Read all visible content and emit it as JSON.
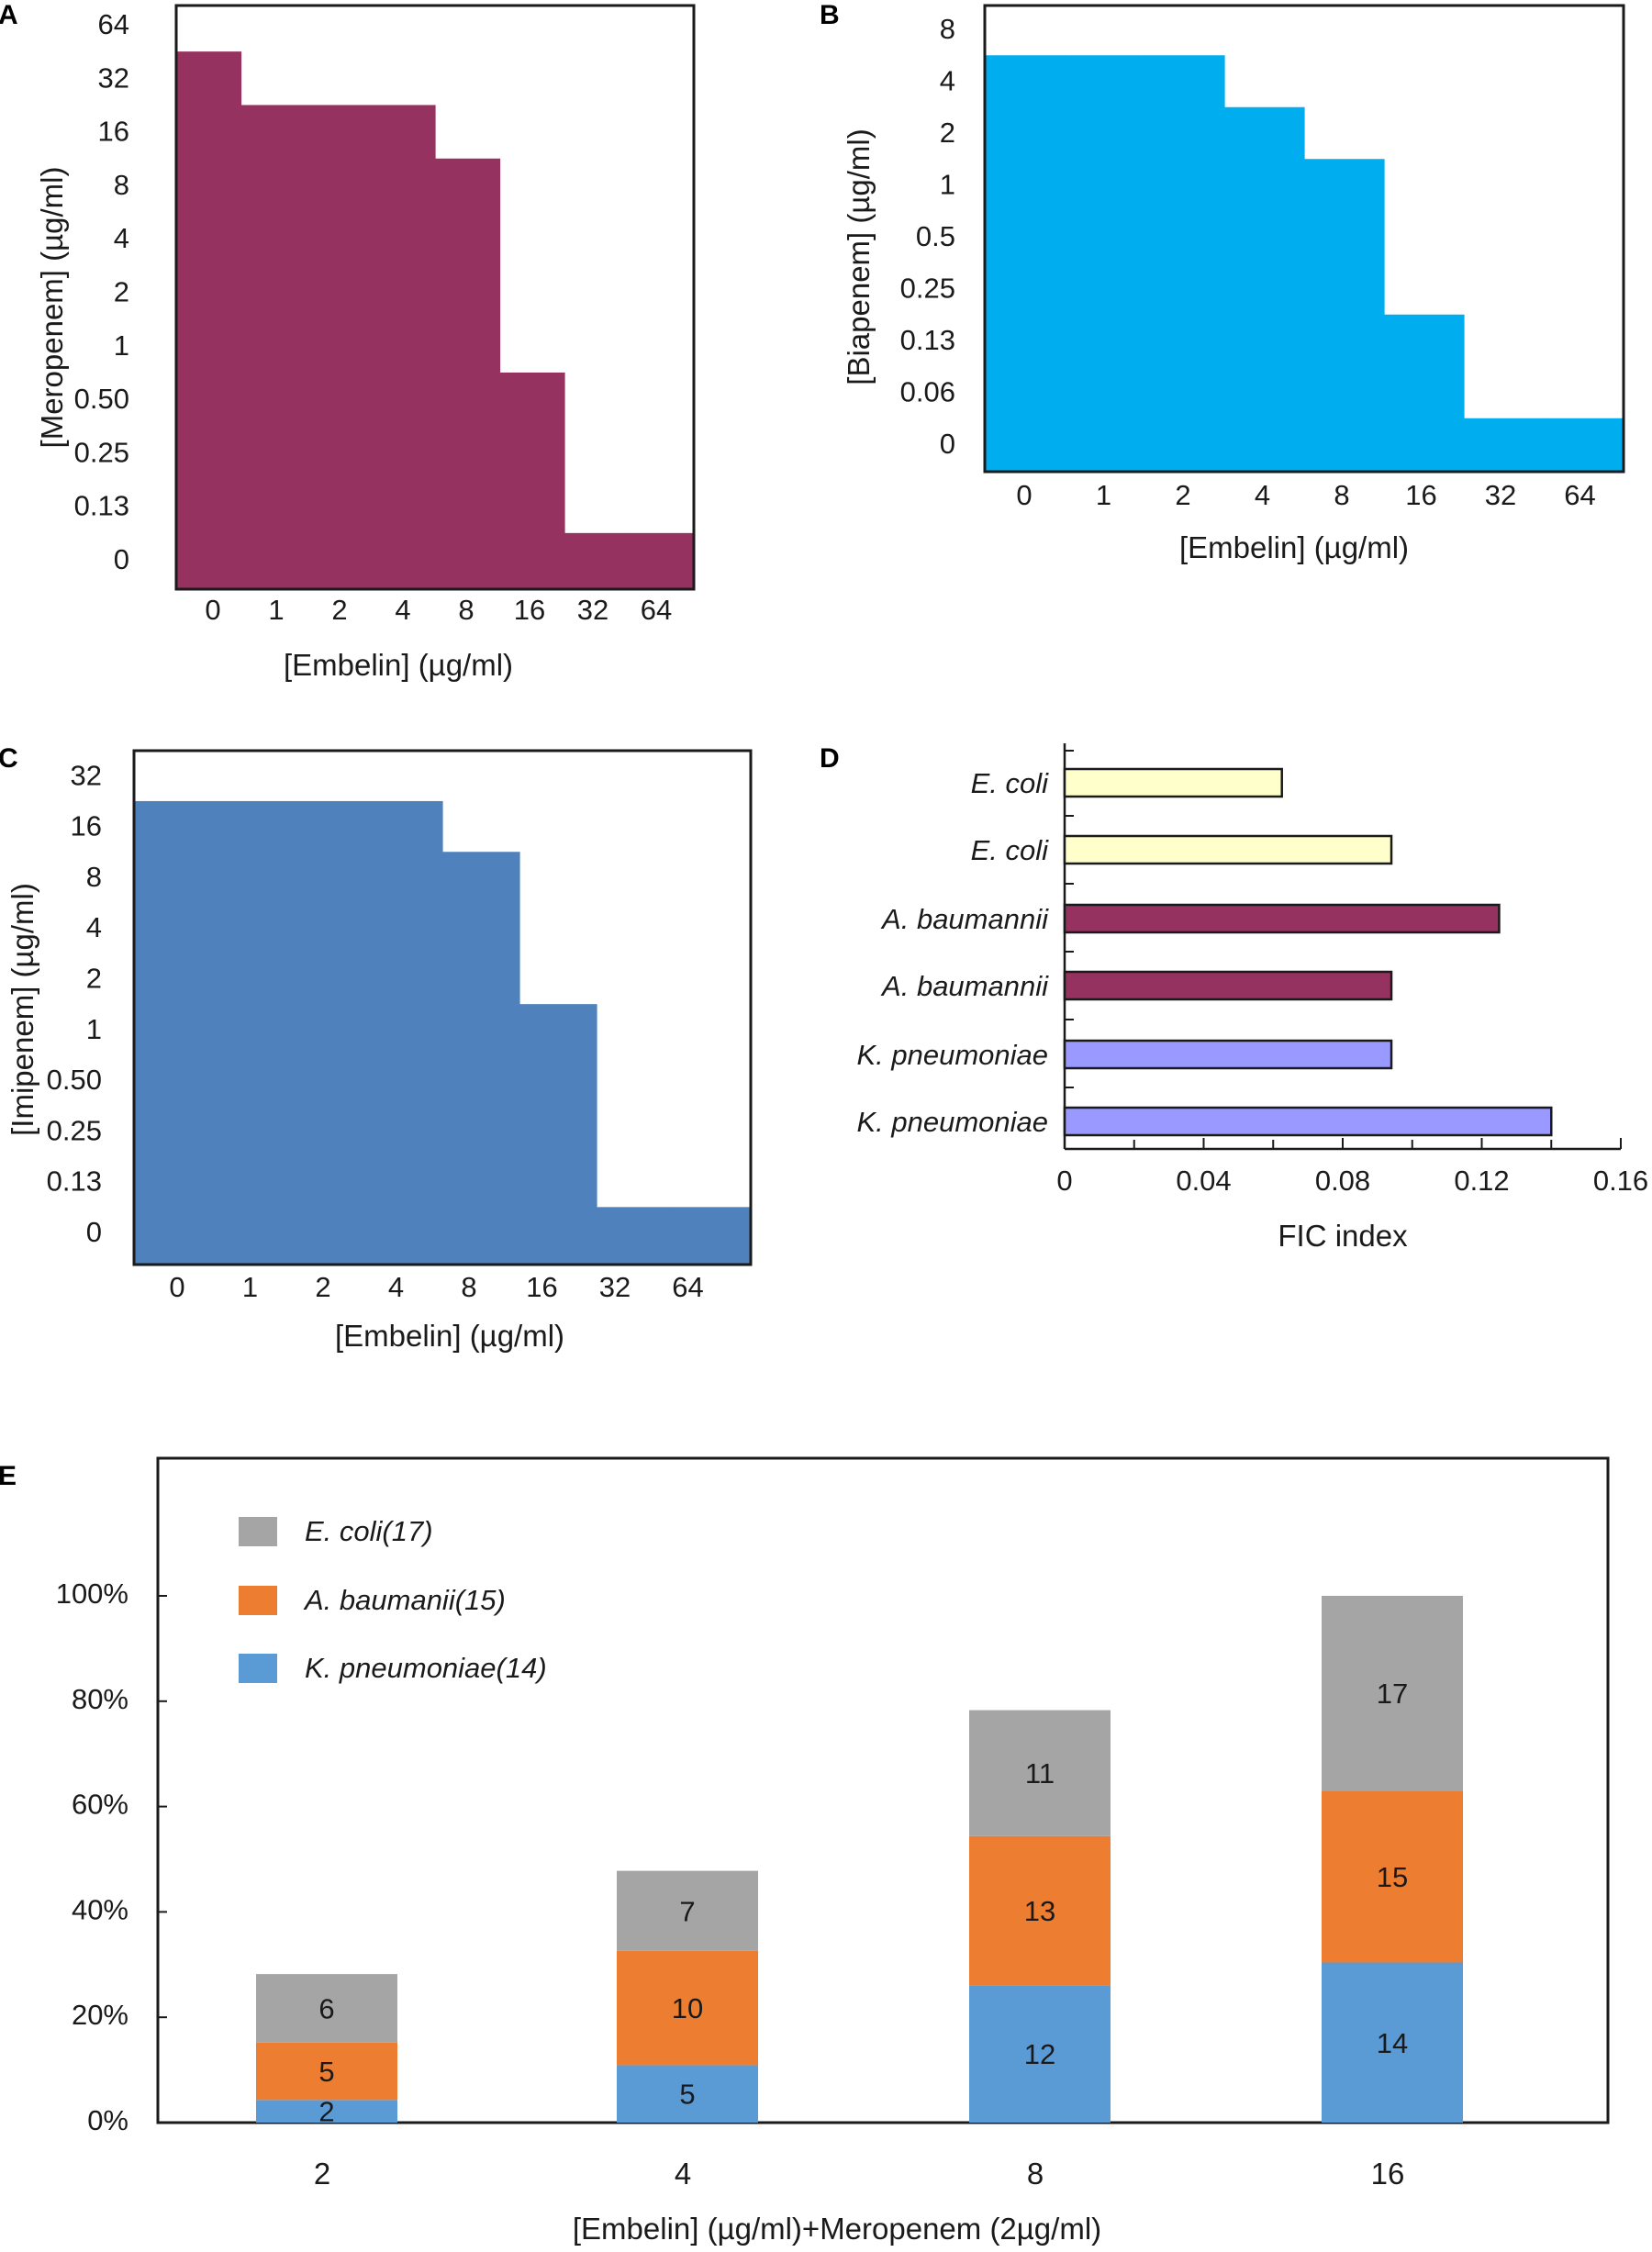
{
  "chart_data": [
    {
      "panel": "A",
      "type": "area",
      "style": "step",
      "color": "#96325f",
      "categories": [
        "0",
        "1",
        "2",
        "4",
        "8",
        "16",
        "32",
        "64"
      ],
      "y_ticks": [
        "0",
        "0.13",
        "0.25",
        "0.50",
        "1",
        "2",
        "4",
        "8",
        "16",
        "32",
        "64"
      ],
      "values": [
        32,
        16,
        16,
        16,
        8,
        0.5,
        0,
        0
      ],
      "xlabel": "[Embelin] (µg/ml)",
      "ylabel": "[Meropenem] (µg/ml)"
    },
    {
      "panel": "B",
      "type": "area",
      "style": "step",
      "color": "#00aeef",
      "categories": [
        "0",
        "1",
        "2",
        "4",
        "8",
        "16",
        "32",
        "64"
      ],
      "y_ticks": [
        "0",
        "0.06",
        "0.13",
        "0.25",
        "0.5",
        "1",
        "2",
        "4",
        "8"
      ],
      "values": [
        4,
        4,
        4,
        2,
        1,
        0.13,
        0,
        0
      ],
      "xlabel": "[Embelin] (µg/ml)",
      "ylabel": "[Biapenem] (µg/ml)"
    },
    {
      "panel": "C",
      "type": "area",
      "style": "step",
      "color": "#4f81bd",
      "categories": [
        "0",
        "1",
        "2",
        "4",
        "8",
        "16",
        "32",
        "64"
      ],
      "y_ticks": [
        "0",
        "0.13",
        "0.25",
        "0.50",
        "1",
        "2",
        "4",
        "8",
        "16",
        "32"
      ],
      "values": [
        16,
        16,
        16,
        16,
        8,
        1,
        0,
        0
      ],
      "xlabel": "[Embelin] (µg/ml)",
      "ylabel": "[Imipenem] (µg/ml)"
    },
    {
      "panel": "D",
      "type": "bar",
      "orientation": "horizontal",
      "categories": [
        "E. coli",
        "E. coli",
        "A. baumannii",
        "A. baumannii",
        "K. pneumoniae",
        "K. pneumoniae"
      ],
      "values": [
        0.0625,
        0.094,
        0.125,
        0.094,
        0.094,
        0.14
      ],
      "colors": [
        "#ffffcc",
        "#ffffcc",
        "#96325f",
        "#96325f",
        "#9999ff",
        "#9999ff"
      ],
      "x_ticks": [
        "0",
        "0.04",
        "0.08",
        "0.12",
        "0.16"
      ],
      "xlim": [
        0,
        0.16
      ],
      "xlabel": "FIC index"
    },
    {
      "panel": "E",
      "type": "bar",
      "stacked": true,
      "categories": [
        "2",
        "4",
        "8",
        "16"
      ],
      "series": [
        {
          "name": "K. pneumoniae(14)",
          "color": "#5b9bd5",
          "values": [
            2,
            5,
            12,
            14
          ],
          "pct": [
            4.3,
            10.9,
            26.1,
            30.4
          ]
        },
        {
          "name": "A. baumanii(15)",
          "color": "#ed7d31",
          "values": [
            5,
            10,
            13,
            15
          ],
          "pct": [
            10.9,
            21.7,
            28.3,
            32.6
          ]
        },
        {
          "name": "E. coli(17)",
          "color": "#a5a5a5",
          "values": [
            6,
            7,
            11,
            17
          ],
          "pct": [
            13.0,
            15.2,
            23.9,
            37.0
          ]
        }
      ],
      "legend_order": [
        "E. coli(17)",
        "A. baumanii(15)",
        "K. pneumoniae(14)"
      ],
      "y_ticks": [
        "0%",
        "20%",
        "40%",
        "60%",
        "80%",
        "100%"
      ],
      "ylim": [
        0,
        100
      ],
      "xlabel": "[Embelin] (µg/ml)+Meropenem (2µg/ml)",
      "legend": "top-left"
    }
  ]
}
